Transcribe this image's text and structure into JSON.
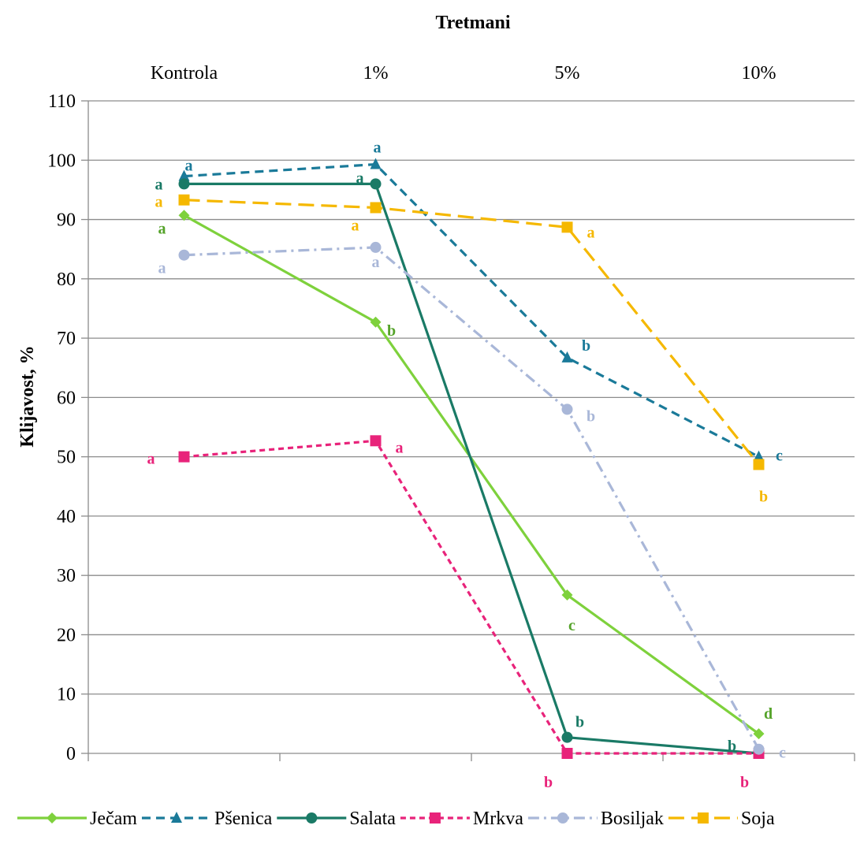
{
  "chart_data": {
    "type": "line",
    "title": "",
    "xlabel": "Tretmani",
    "ylabel": "Klijavost, %",
    "categories": [
      "Kontrola",
      "1%",
      "5%",
      "10%"
    ],
    "ylim": [
      0,
      110
    ],
    "ytick_step": 10,
    "grid": true,
    "legend_position": "bottom",
    "series": [
      {
        "name": "Ječam",
        "color": "#7ED13C",
        "label_color": "#55A32A",
        "marker": "diamond",
        "dash": "solid",
        "values": [
          90.7,
          72.7,
          26.7,
          3.3
        ],
        "labels": [
          "a",
          "b",
          "c",
          "d"
        ]
      },
      {
        "name": "Pšenica",
        "color": "#1A7A99",
        "label_color": "#1A7A99",
        "marker": "triangle",
        "dash": "dash",
        "values": [
          97.3,
          99.3,
          66.7,
          50.0
        ],
        "labels": [
          "a",
          "a",
          "b",
          "c"
        ]
      },
      {
        "name": "Salata",
        "color": "#1A7A66",
        "label_color": "#1A7A66",
        "marker": "circle",
        "dash": "solid",
        "values": [
          96.0,
          96.0,
          2.7,
          0.0
        ],
        "labels": [
          "a",
          "a",
          "b",
          "b"
        ]
      },
      {
        "name": "Mrkva",
        "color": "#E8237A",
        "label_color": "#E8237A",
        "marker": "square",
        "dash": "shortdash",
        "values": [
          50.0,
          52.7,
          0.0,
          0.0
        ],
        "labels": [
          "a",
          "a",
          "b",
          "b"
        ]
      },
      {
        "name": "Bosiljak",
        "color": "#A9B7D8",
        "label_color": "#A9B7D8",
        "marker": "circle",
        "dash": "dashdot",
        "values": [
          84.0,
          85.3,
          58.0,
          0.7
        ],
        "labels": [
          "a",
          "a",
          "b",
          "c"
        ]
      },
      {
        "name": "Soja",
        "color": "#F5B800",
        "label_color": "#F5B800",
        "marker": "square",
        "dash": "longdash",
        "values": [
          93.3,
          92.0,
          88.7,
          48.7
        ],
        "labels": [
          "a",
          "a",
          "a",
          "b"
        ]
      }
    ]
  }
}
